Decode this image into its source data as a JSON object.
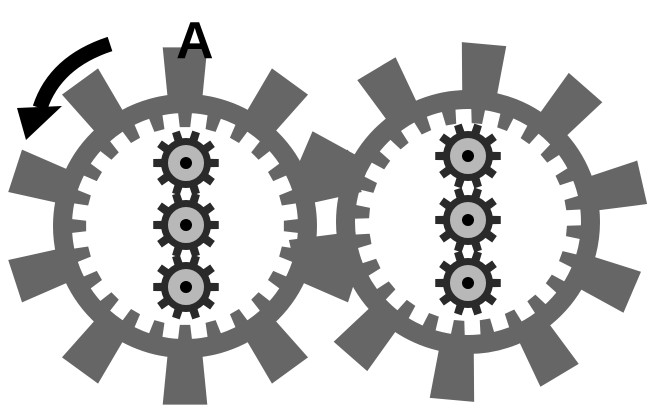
{
  "labels": {
    "gear_label": "A"
  },
  "icons": {
    "rotation_arrow": "curved-arrow-counterclockwise-icon",
    "outer_gear": "ring-gear-icon",
    "inner_gear": "small-gear-icon"
  },
  "colors": {
    "outer_gear": "#666666",
    "inner_gear_dark": "#2a2a2a",
    "inner_gear_hub": "#b8b8b8",
    "inner_gear_center": "#000000",
    "arrow": "#000000",
    "background": "#ffffff"
  },
  "structure": {
    "ring_gears": [
      {
        "name": "left-ring-gear",
        "outer_teeth": 10,
        "inner_teeth": 24,
        "small_gears": 3
      },
      {
        "name": "right-ring-gear",
        "outer_teeth": 10,
        "inner_teeth": 24,
        "small_gears": 3
      }
    ]
  }
}
